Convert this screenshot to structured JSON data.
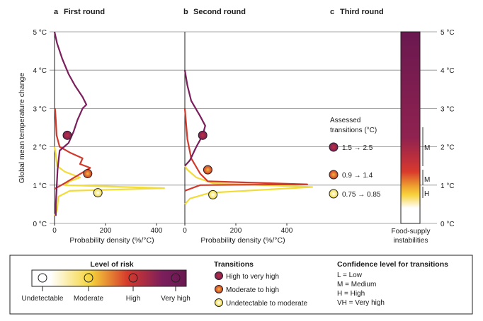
{
  "chart_data": {
    "type": "line",
    "ylabel": "Global mean temperature change",
    "ylim": [
      0,
      5
    ],
    "y_ticks": [
      "0 °C",
      "1 °C",
      "2 °C",
      "3 °C",
      "4 °C",
      "5 °C"
    ],
    "y_ticks_right": [
      "0 °C",
      "1 °C",
      "2 °C",
      "3 °C",
      "4 °C",
      "5 °C"
    ],
    "xlabel": "Probability density (%/°C)",
    "x_ticks": [
      "0",
      "200",
      "400"
    ],
    "xlim": [
      0,
      500
    ],
    "panels": [
      {
        "letter": "a",
        "title": "First round",
        "series": [
          {
            "name": "Very high",
            "color": "#7a1e5c",
            "points": [
              [
                5,
                0.2
              ],
              [
                5,
                0.5
              ],
              [
                8,
                0.9
              ],
              [
                12,
                1.4
              ],
              [
                20,
                1.9
              ],
              [
                55,
                2.1
              ],
              [
                75,
                2.4
              ],
              [
                90,
                2.7
              ],
              [
                110,
                3.0
              ],
              [
                125,
                3.1
              ],
              [
                110,
                3.3
              ],
              [
                80,
                3.6
              ],
              [
                55,
                3.9
              ],
              [
                30,
                4.3
              ],
              [
                10,
                4.7
              ],
              [
                0,
                5.0
              ]
            ]
          },
          {
            "name": "High",
            "color": "#d03a2c",
            "points": [
              [
                0,
                0.9
              ],
              [
                40,
                1.05
              ],
              [
                90,
                1.25
              ],
              [
                140,
                1.45
              ],
              [
                100,
                1.55
              ],
              [
                110,
                1.7
              ],
              [
                60,
                1.85
              ],
              [
                20,
                2.0
              ],
              [
                8,
                2.3
              ],
              [
                5,
                2.7
              ],
              [
                2,
                3.0
              ]
            ]
          },
          {
            "name": "Moderate",
            "color": "#f2dc3a",
            "points": [
              [
                0,
                0.2
              ],
              [
                10,
                0.35
              ],
              [
                15,
                0.7
              ],
              [
                60,
                0.85
              ],
              [
                430,
                0.92
              ],
              [
                40,
                1.0
              ],
              [
                60,
                1.1
              ],
              [
                100,
                1.2
              ],
              [
                40,
                1.35
              ],
              [
                10,
                1.5
              ],
              [
                5,
                1.8
              ],
              [
                0,
                2.0
              ]
            ]
          }
        ],
        "transitions": [
          {
            "name": "High to very high",
            "temp": 2.3,
            "density": 50
          },
          {
            "name": "Moderate to high",
            "temp": 1.3,
            "density": 130
          },
          {
            "name": "Undetectable to moderate",
            "temp": 0.8,
            "density": 170
          }
        ]
      },
      {
        "letter": "b",
        "title": "Second round",
        "series": [
          {
            "name": "Very high",
            "color": "#7a1e5c",
            "points": [
              [
                0,
                1.5
              ],
              [
                20,
                1.65
              ],
              [
                45,
                2.0
              ],
              [
                70,
                2.3
              ],
              [
                80,
                2.55
              ],
              [
                60,
                2.8
              ],
              [
                25,
                3.2
              ],
              [
                10,
                3.6
              ],
              [
                0,
                4.0
              ]
            ]
          },
          {
            "name": "High",
            "color": "#d03a2c",
            "points": [
              [
                0,
                0.85
              ],
              [
                60,
                1.0
              ],
              [
                480,
                1.02
              ],
              [
                90,
                1.1
              ],
              [
                60,
                1.3
              ],
              [
                25,
                1.7
              ],
              [
                10,
                2.2
              ],
              [
                5,
                2.6
              ],
              [
                0,
                3.0
              ]
            ]
          },
          {
            "name": "Moderate",
            "color": "#f2dc3a",
            "points": [
              [
                0,
                0.5
              ],
              [
                20,
                0.65
              ],
              [
                100,
                0.8
              ],
              [
                500,
                0.95
              ],
              [
                110,
                1.05
              ],
              [
                45,
                1.2
              ],
              [
                10,
                1.4
              ],
              [
                0,
                1.5
              ]
            ]
          }
        ],
        "transitions": [
          {
            "name": "High to very high",
            "temp": 2.3,
            "density": 70
          },
          {
            "name": "Moderate to high",
            "temp": 1.4,
            "density": 90
          },
          {
            "name": "Undetectable to moderate",
            "temp": 0.75,
            "density": 110
          }
        ]
      },
      {
        "letter": "c",
        "title": "Third round",
        "assessed_title": "Assessed",
        "assessed_title2": "transitions (°C)",
        "transitions": [
          {
            "name": "High to very high",
            "label": "1.5 → 2.5",
            "from": 1.5,
            "to": 2.5,
            "confidence": "M"
          },
          {
            "name": "Moderate to high",
            "label": "0.9 → 1.4",
            "from": 0.9,
            "to": 1.4,
            "confidence": "M"
          },
          {
            "name": "Undetectable to moderate",
            "label": "0.75 → 0.85",
            "from": 0.75,
            "to": 0.85,
            "confidence": "H"
          }
        ],
        "bar_label_line1": "Food-supply",
        "bar_label_line2": "instabilities"
      }
    ]
  },
  "legend": {
    "risk_title": "Level of risk",
    "risk_levels": [
      "Undetectable",
      "Moderate",
      "High",
      "Very high"
    ],
    "transitions_title": "Transitions",
    "transitions_items": [
      "High to very high",
      "Moderate to high",
      "Undetectable to moderate"
    ],
    "confidence_title": "Confidence level for transitions",
    "confidence_items": [
      "L = Low",
      "M = Medium",
      "H = High",
      "VH = Very high"
    ]
  },
  "colors": {
    "very_high": "#7a1e5c",
    "high": "#d03a2c",
    "moderate": "#f2dc3a",
    "undetectable": "#ffffff",
    "grid": "#8a8a8a"
  }
}
